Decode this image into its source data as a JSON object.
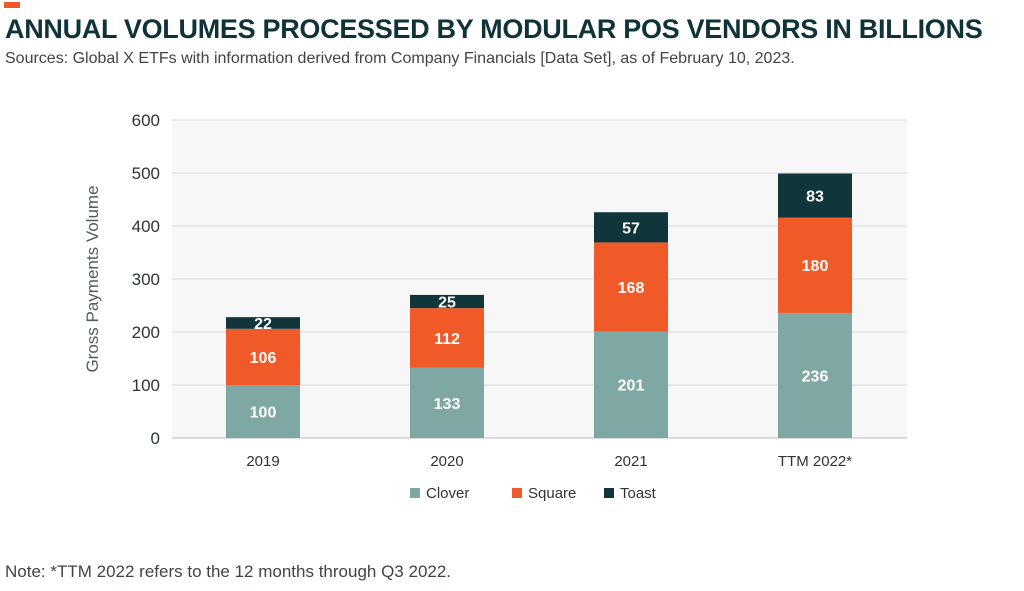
{
  "header": {
    "title": "ANNUAL VOLUMES PROCESSED BY MODULAR POS VENDORS IN BILLIONS",
    "subtitle": "Sources: Global X ETFs with information derived from Company Financials [Data Set], as of February 10, 2023."
  },
  "footer": {
    "note": "Note: *TTM 2022 refers to the 12 months through Q3 2022."
  },
  "colors": {
    "accent": "#f05a28",
    "title": "#0f3339",
    "clover": "#7fa8a5",
    "square": "#f05a28",
    "toast": "#10363c",
    "grid": "#d9dcdc",
    "plot_background": "#f7f7f7"
  },
  "chart_data": {
    "type": "bar",
    "stacked": true,
    "categories": [
      "2019",
      "2020",
      "2021",
      "TTM 2022*"
    ],
    "series": [
      {
        "name": "Clover",
        "values": [
          100,
          133,
          201,
          236
        ],
        "color": "#7fa8a5"
      },
      {
        "name": "Square",
        "values": [
          106,
          112,
          168,
          180
        ],
        "color": "#f05a28"
      },
      {
        "name": "Toast",
        "values": [
          22,
          25,
          57,
          83
        ],
        "color": "#10363c"
      }
    ],
    "xlabel": "",
    "ylabel": "Gross Payments Volume",
    "ylim": [
      0,
      600
    ],
    "yticks": [
      0,
      100,
      200,
      300,
      400,
      500,
      600
    ],
    "grid": true,
    "data_labels": true,
    "legend": "bottom"
  }
}
